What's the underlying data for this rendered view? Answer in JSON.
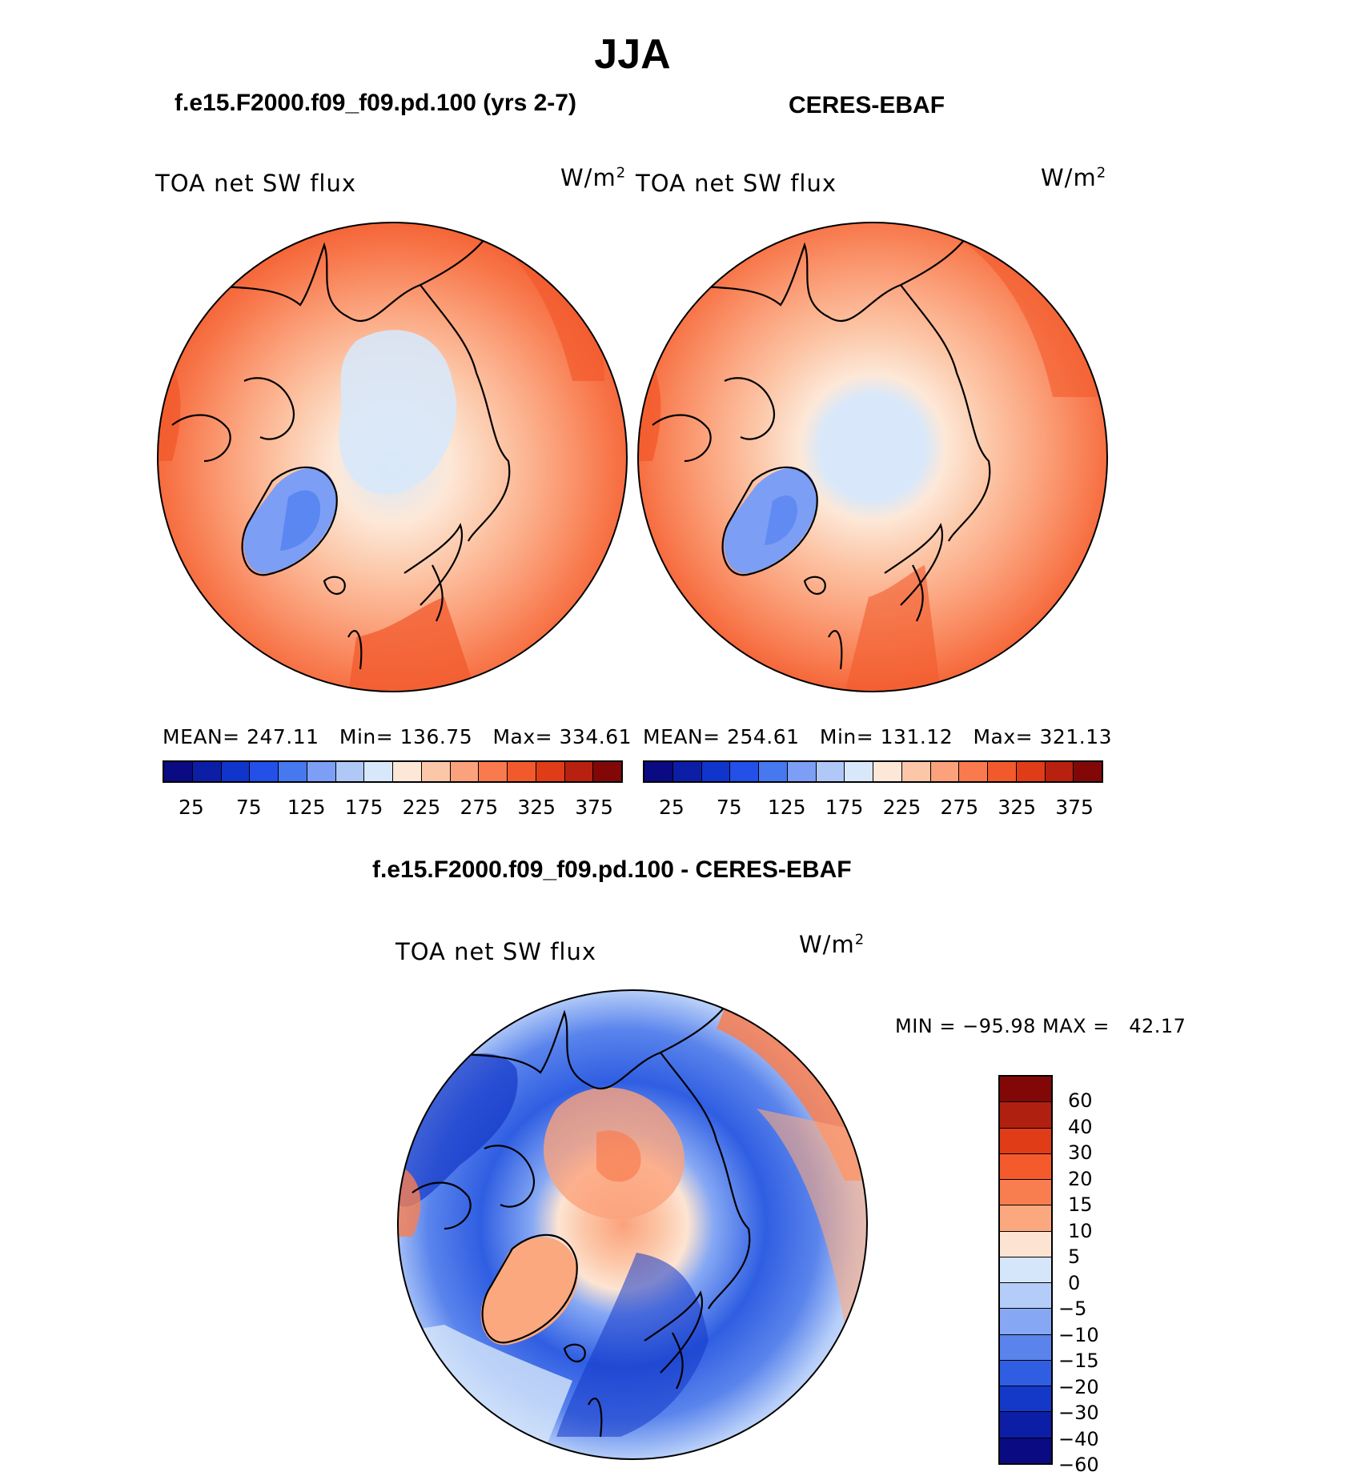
{
  "title": "JJA",
  "colors": {
    "scale16": [
      "#0a0a82",
      "#0c1ea6",
      "#1035cc",
      "#2250e8",
      "#4678f0",
      "#7c9ef5",
      "#b0c8f8",
      "#d8e8fa",
      "#fde8d8",
      "#fcc7a8",
      "#fba27c",
      "#f87a4e",
      "#f25a2c",
      "#e03c18",
      "#b82010",
      "#820808"
    ],
    "diff14": [
      "#820808",
      "#b02010",
      "#e03c18",
      "#f55a2c",
      "#f87e50",
      "#fba87e",
      "#fde4d2",
      "#d6e6fa",
      "#b4ccf8",
      "#86a8f4",
      "#5a84ec",
      "#2f5ee2",
      "#1438c8",
      "#0c1ea6",
      "#0a0a82"
    ]
  },
  "panels": [
    {
      "title": "f.e15.F2000.f09_f09.pd.100 (yrs 2-7)",
      "variable": "TOA net SW flux",
      "unit": "W/m",
      "unit_sup": "2",
      "stats": "MEAN= 247.11   Min= 136.75   Max= 334.61"
    },
    {
      "title": "CERES-EBAF",
      "variable": "TOA net SW flux",
      "unit": "W/m",
      "unit_sup": "2",
      "stats": "MEAN= 254.61   Min= 131.12   Max= 321.13"
    }
  ],
  "colorbar_ticks": [
    "25",
    "75",
    "125",
    "175",
    "225",
    "275",
    "325",
    "375"
  ],
  "diff": {
    "title": "f.e15.F2000.f09_f09.pd.100 - CERES-EBAF",
    "variable": "TOA net SW flux",
    "unit": "W/m",
    "unit_sup": "2",
    "stats": "MIN = −95.98 MAX =   42.17",
    "ticks": [
      "60",
      "40",
      "30",
      "20",
      "15",
      "10",
      "5",
      "0",
      "−5",
      "−10",
      "−15",
      "−20",
      "−30",
      "−40",
      "−60"
    ]
  }
}
